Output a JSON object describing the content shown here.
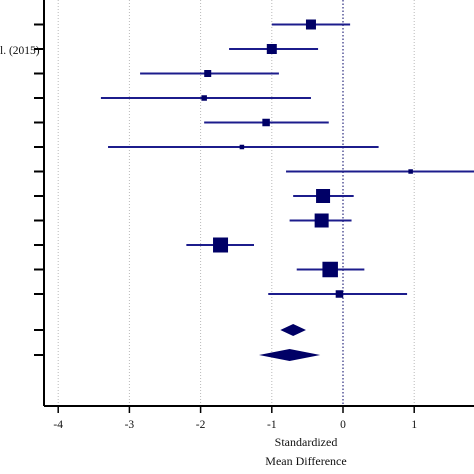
{
  "chart_data": {
    "type": "forest",
    "xlabel_line1": "Standardized",
    "xlabel_line2": "Mean Difference",
    "xlim": [
      -4,
      1
    ],
    "xticks": [
      -4,
      -3,
      -2,
      -1,
      0,
      1
    ],
    "xtick_labels": [
      "-4",
      "-3",
      "-2",
      "-1",
      "0",
      "1"
    ],
    "grid": "vertical dotted",
    "reference_line": 0,
    "study_labels": [
      "",
      "l. (2015)",
      "",
      "",
      "",
      "",
      "",
      "",
      "",
      "",
      "",
      "",
      ""
    ],
    "studies": [
      {
        "estimate": -0.45,
        "ci": [
          -1.0,
          0.1
        ],
        "weight": 1.0
      },
      {
        "estimate": -1.0,
        "ci": [
          -1.6,
          -0.35
        ],
        "weight": 1.0
      },
      {
        "estimate": -1.9,
        "ci": [
          -2.85,
          -0.9
        ],
        "weight": 0.7
      },
      {
        "estimate": -1.95,
        "ci": [
          -3.4,
          -0.45
        ],
        "weight": 0.55
      },
      {
        "estimate": -1.08,
        "ci": [
          -1.95,
          -0.2
        ],
        "weight": 0.75
      },
      {
        "estimate": -1.42,
        "ci": [
          -3.3,
          0.5
        ],
        "weight": 0.45
      },
      {
        "estimate": 0.95,
        "ci": [
          -0.8,
          1.9
        ],
        "weight": 0.45
      },
      {
        "estimate": -0.28,
        "ci": [
          -0.7,
          0.15
        ],
        "weight": 1.4
      },
      {
        "estimate": -0.3,
        "ci": [
          -0.75,
          0.12
        ],
        "weight": 1.4
      },
      {
        "estimate": -1.72,
        "ci": [
          -2.2,
          -1.25
        ],
        "weight": 1.5
      },
      {
        "estimate": -0.18,
        "ci": [
          -0.65,
          0.3
        ],
        "weight": 1.55
      },
      {
        "estimate": -0.05,
        "ci": [
          -1.05,
          0.9
        ],
        "weight": 0.75
      }
    ],
    "summaries": [
      {
        "estimate": -0.7,
        "ci": [
          -0.88,
          -0.52
        ]
      },
      {
        "estimate": -0.75,
        "ci": [
          -1.18,
          -0.32
        ]
      }
    ],
    "colors": {
      "marker": "#000066",
      "ci_line": "#1c1c8c",
      "grid": "#b9b9b9",
      "reference": "#000066",
      "axis": "#000000"
    }
  }
}
